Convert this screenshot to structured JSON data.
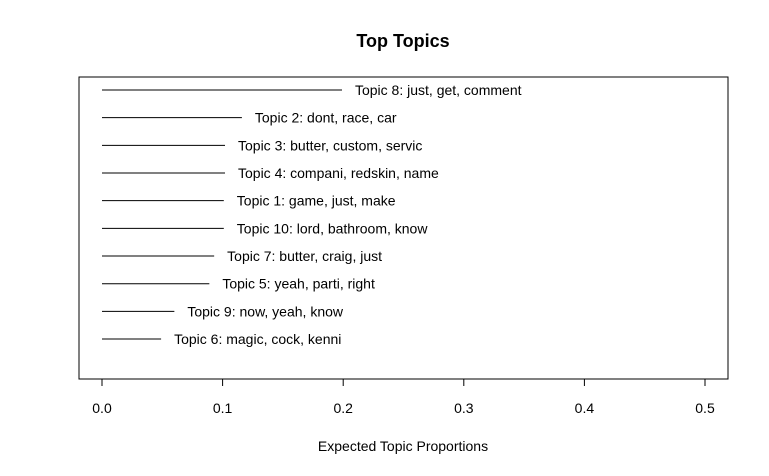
{
  "chart_data": {
    "type": "bar",
    "orientation": "horizontal",
    "title": "Top Topics",
    "xlabel": "Expected Topic Proportions",
    "ylabel": "",
    "xlim": [
      0,
      0.5
    ],
    "xticks": [
      "0.0",
      "0.1",
      "0.2",
      "0.3",
      "0.4",
      "0.5"
    ],
    "grid": false,
    "legend": "none",
    "colors": {
      "line": "#000000",
      "frame": "#000000",
      "background": "#ffffff"
    },
    "categories": [
      "Topic 8: just, get, comment",
      "Topic 2: dont, race, car",
      "Topic 3: butter, custom, servic",
      "Topic 4: compani, redskin, name",
      "Topic 1: game, just, make",
      "Topic 10: lord, bathroom, know",
      "Topic 7: butter, craig, just",
      "Topic 5: yeah, parti, right",
      "Topic 9: now, yeah, know",
      "Topic 6: magic, cock, kenni"
    ],
    "values": [
      0.199,
      0.116,
      0.102,
      0.102,
      0.101,
      0.101,
      0.093,
      0.089,
      0.06,
      0.049
    ]
  }
}
